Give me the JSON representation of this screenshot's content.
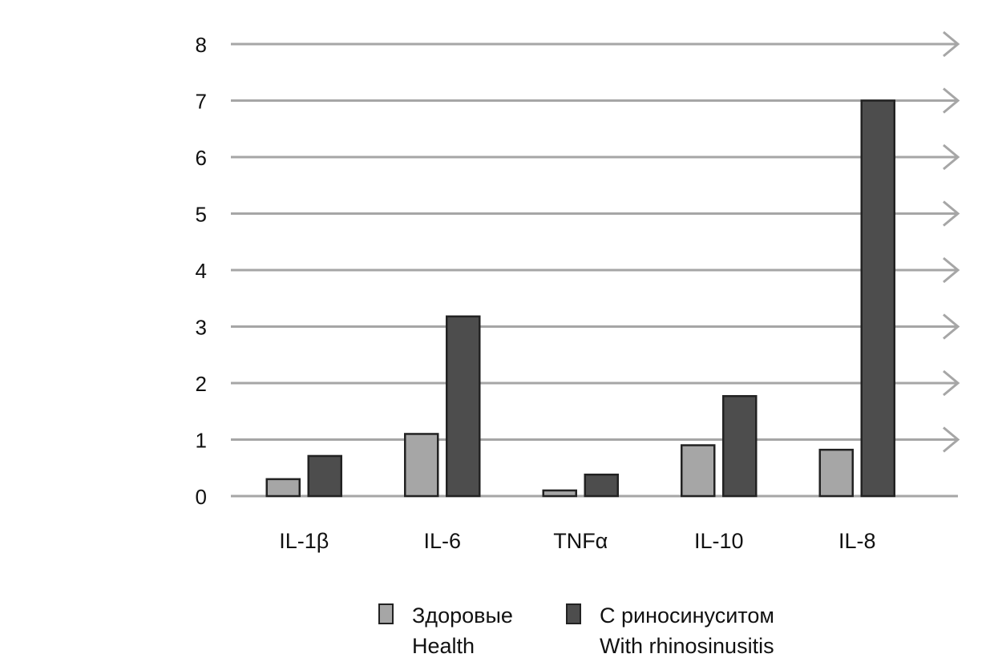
{
  "chart_data": {
    "type": "bar",
    "title": "",
    "xlabel": "",
    "ylabel": "",
    "ylim": [
      0,
      8
    ],
    "yticks": [
      "0",
      "1",
      "2",
      "3",
      "4",
      "5",
      "6",
      "7",
      "8"
    ],
    "grid": true,
    "categories": [
      "IL-1β",
      "IL-6",
      "TNFα",
      "IL-10",
      "IL-8"
    ],
    "series": [
      {
        "name": "Здоровые",
        "name_en": "Health",
        "color": "#a6a6a6",
        "values": [
          0.3,
          1.1,
          0.1,
          0.9,
          0.82
        ]
      },
      {
        "name": "С риносинуситом",
        "name_en": "With rhinosinusitis",
        "color": "#4d4d4d",
        "values": [
          0.71,
          3.18,
          0.38,
          1.77,
          7.0
        ]
      }
    ],
    "legend_position": "bottom"
  }
}
